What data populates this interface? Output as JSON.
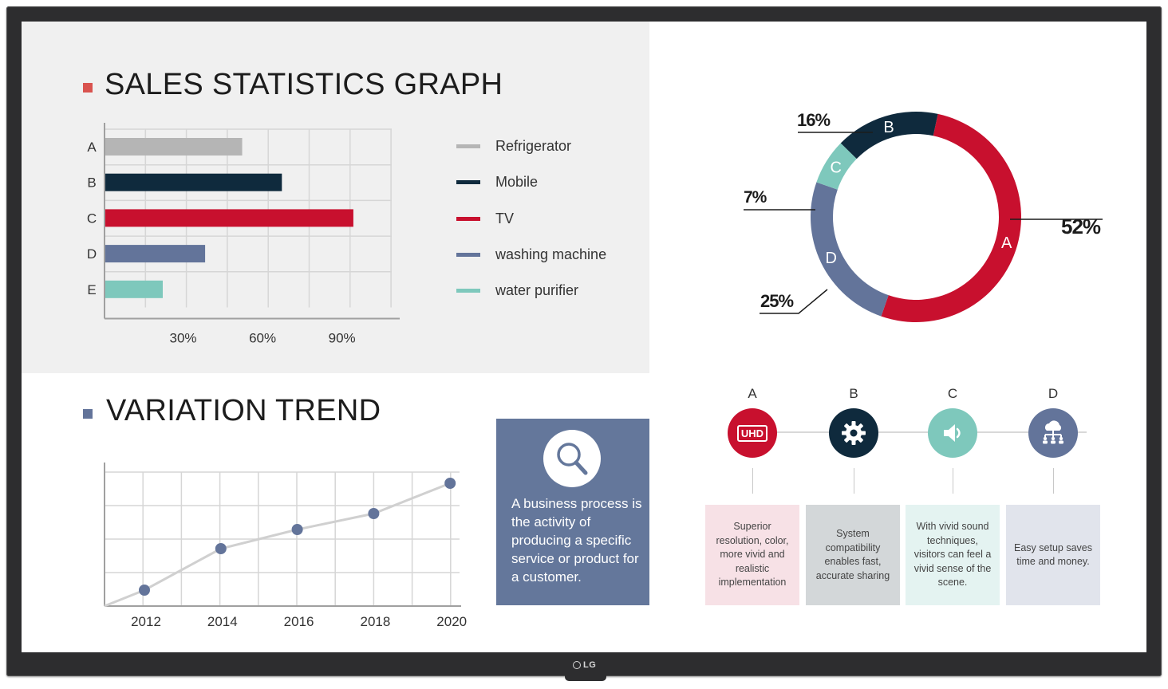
{
  "brand": {
    "logo_text": "LG"
  },
  "sales": {
    "title": "SALES STATISTICS GRAPH",
    "title_marker_color": "#d9534f",
    "chart_data": {
      "type": "bar",
      "orientation": "horizontal",
      "categories": [
        "A",
        "B",
        "C",
        "D",
        "E"
      ],
      "values": [
        52,
        67,
        94,
        38,
        22
      ],
      "colors": [
        "#b5b5b5",
        "#0f2a3d",
        "#c8102e",
        "#63749a",
        "#7ec8bc"
      ],
      "xticks": [
        "30%",
        "60%",
        "90%"
      ],
      "xlim": [
        0,
        110
      ],
      "grid": true
    },
    "legend": [
      {
        "label": "Refrigerator",
        "color": "#b5b5b5"
      },
      {
        "label": "Mobile",
        "color": "#0f2a3d"
      },
      {
        "label": "TV",
        "color": "#c8102e"
      },
      {
        "label": "washing machine",
        "color": "#63749a"
      },
      {
        "label": "water purifier",
        "color": "#7ec8bc"
      }
    ]
  },
  "donut": {
    "chart_data": {
      "type": "pie",
      "style": "donut",
      "labels": [
        "A",
        "D",
        "C",
        "B"
      ],
      "values": [
        52,
        25,
        7,
        16
      ],
      "value_labels": [
        "52%",
        "25%",
        "7%",
        "16%"
      ],
      "colors": [
        "#c8102e",
        "#63749a",
        "#7ec8bc",
        "#0f2a3d"
      ]
    }
  },
  "trend": {
    "title": "VARIATION TREND",
    "title_marker_color": "#63749a",
    "chart_data": {
      "type": "line",
      "x": [
        "2012",
        "2014",
        "2016",
        "2018",
        "2020"
      ],
      "values": [
        10,
        36,
        48,
        58,
        77
      ],
      "ylim": [
        0,
        84
      ],
      "grid": true,
      "line_color": "#d0d0d0",
      "marker_color": "#63749a"
    }
  },
  "info": {
    "icon": "magnifier-icon",
    "text": "A business process is the activity of producing a specific service or product for a customer."
  },
  "features": [
    {
      "letter": "A",
      "icon": "uhd-icon",
      "icon_text": "UHD",
      "color": "#c8102e",
      "card_color": "#f7e1e6",
      "text": "Superior resolution, color, more vivid and realistic implementation"
    },
    {
      "letter": "B",
      "icon": "gear-icon",
      "color": "#0f2a3d",
      "card_color": "#d3d7d9",
      "text": "System compatibility enables fast, accurate sharing"
    },
    {
      "letter": "C",
      "icon": "speaker-icon",
      "color": "#7ec8bc",
      "card_color": "#e4f3f1",
      "text": "With vivid sound techniques, visitors can feel a vivid sense of the scene."
    },
    {
      "letter": "D",
      "icon": "cloud-network-icon",
      "color": "#63749a",
      "card_color": "#e1e4ec",
      "text": "Easy setup saves time and money."
    }
  ]
}
